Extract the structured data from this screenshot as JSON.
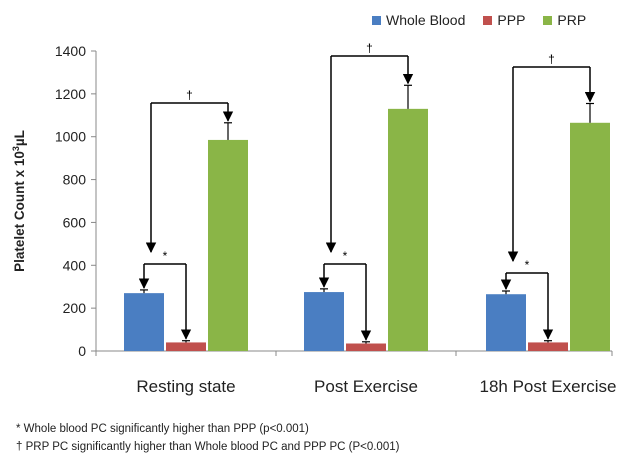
{
  "chart_data": {
    "type": "bar",
    "categories": [
      "Resting state",
      "Post Exercise",
      "18h Post Exercise"
    ],
    "series": [
      {
        "name": "Whole Blood",
        "values": [
          270,
          275,
          265
        ],
        "errors": [
          15,
          15,
          15
        ],
        "color": "#4a7ec2"
      },
      {
        "name": "PPP",
        "values": [
          40,
          35,
          40
        ],
        "errors": [
          8,
          8,
          8
        ],
        "color": "#c0504d"
      },
      {
        "name": "PRP",
        "values": [
          985,
          1130,
          1065
        ],
        "errors": [
          80,
          110,
          90
        ],
        "color": "#8ab547"
      }
    ],
    "ylabel_main": "Platelet Count x 10",
    "ylabel_sup": "3",
    "ylabel_unit": "µL",
    "ylim": [
      0,
      1400
    ],
    "yticks": [
      "0",
      "200",
      "400",
      "600",
      "800",
      "1000",
      "1200",
      "1400"
    ],
    "ytick_values": [
      0,
      200,
      400,
      600,
      800,
      1000,
      1200,
      1400
    ],
    "grid": false,
    "legend_position": "top-right",
    "annotations": {
      "star": "*",
      "dagger": "†"
    },
    "footnotes": [
      "* Whole blood PC significantly higher than PPP (p<0.001)",
      "† PRP PC significantly higher than Whole blood PC and PPP PC (P<0.001)"
    ]
  }
}
